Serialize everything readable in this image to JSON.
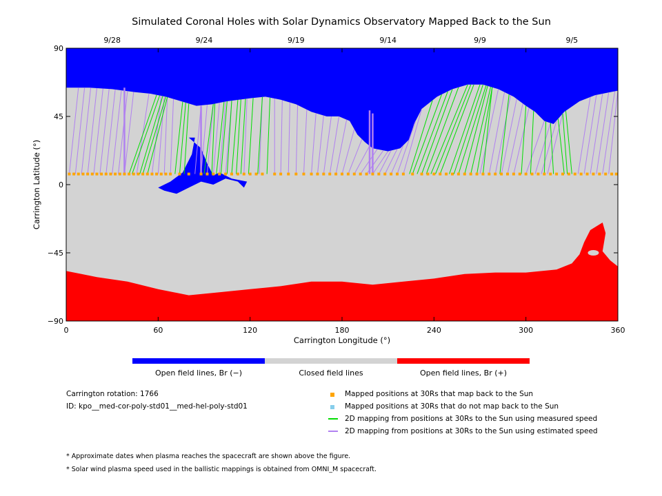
{
  "chart_data": {
    "type": "map",
    "title": "Simulated Coronal Holes with Solar Dynamics Observatory Mapped Back to the Sun",
    "xlabel": "Carrington Longitude (°)",
    "ylabel": "Carrington Latitude (°)",
    "xlim": [
      0,
      360
    ],
    "ylim": [
      -90,
      90
    ],
    "xticks": [
      0,
      60,
      120,
      180,
      240,
      300,
      360
    ],
    "yticks": [
      -90,
      -45,
      0,
      45,
      90
    ],
    "xtick_labels": [
      "0",
      "60",
      "120",
      "180",
      "240",
      "300",
      "360"
    ],
    "ytick_labels": [
      "−90",
      "−45",
      "0",
      "45",
      "90"
    ],
    "top_dates": [
      {
        "label": "9/28",
        "lon": 30
      },
      {
        "label": "9/24",
        "lon": 90
      },
      {
        "label": "9/19",
        "lon": 150
      },
      {
        "label": "9/14",
        "lon": 210
      },
      {
        "label": "9/9",
        "lon": 270
      },
      {
        "label": "9/5",
        "lon": 330
      }
    ],
    "colors": {
      "open_negative": "#0000ff",
      "closed": "#d3d3d3",
      "open_positive": "#ff0000",
      "mapped": "#ffa500",
      "unmapped": "#87ceeb",
      "measured": "#00dd00",
      "estimated": "#b080f0"
    },
    "north_boundary": [
      [
        0,
        64
      ],
      [
        15,
        64
      ],
      [
        30,
        63
      ],
      [
        45,
        61
      ],
      [
        55,
        60
      ],
      [
        65,
        58
      ],
      [
        75,
        55
      ],
      [
        85,
        52
      ],
      [
        95,
        53
      ],
      [
        105,
        55
      ],
      [
        120,
        57
      ],
      [
        130,
        58
      ],
      [
        140,
        56
      ],
      [
        150,
        53
      ],
      [
        160,
        48
      ],
      [
        170,
        45
      ],
      [
        178,
        45
      ],
      [
        185,
        42
      ],
      [
        190,
        33
      ],
      [
        195,
        28
      ],
      [
        200,
        24
      ],
      [
        210,
        22
      ],
      [
        218,
        24
      ],
      [
        224,
        30
      ],
      [
        227,
        40
      ],
      [
        232,
        50
      ],
      [
        242,
        58
      ],
      [
        252,
        63
      ],
      [
        262,
        66
      ],
      [
        272,
        66
      ],
      [
        282,
        63
      ],
      [
        292,
        58
      ],
      [
        300,
        52
      ],
      [
        306,
        48
      ],
      [
        312,
        42
      ],
      [
        318,
        40
      ],
      [
        325,
        48
      ],
      [
        335,
        55
      ],
      [
        345,
        59
      ],
      [
        360,
        62
      ]
    ],
    "south_boundary": [
      [
        0,
        -57
      ],
      [
        10,
        -59
      ],
      [
        20,
        -61
      ],
      [
        40,
        -64
      ],
      [
        60,
        -69
      ],
      [
        80,
        -73
      ],
      [
        100,
        -71
      ],
      [
        120,
        -69
      ],
      [
        140,
        -67
      ],
      [
        160,
        -64
      ],
      [
        180,
        -64
      ],
      [
        200,
        -66
      ],
      [
        220,
        -64
      ],
      [
        240,
        -62
      ],
      [
        260,
        -59
      ],
      [
        280,
        -58
      ],
      [
        300,
        -58
      ],
      [
        320,
        -56
      ],
      [
        330,
        -52
      ],
      [
        335,
        -46
      ],
      [
        338,
        -38
      ],
      [
        342,
        -30
      ],
      [
        350,
        -25
      ],
      [
        352,
        -32
      ],
      [
        350,
        -44
      ],
      [
        355,
        -50
      ],
      [
        360,
        -54
      ]
    ],
    "lower_blue_hole": [
      [
        80,
        31
      ],
      [
        88,
        24
      ],
      [
        92,
        14
      ],
      [
        96,
        6
      ],
      [
        100,
        8
      ],
      [
        108,
        4
      ],
      [
        118,
        2
      ],
      [
        116,
        -2
      ],
      [
        112,
        2
      ],
      [
        104,
        4
      ],
      [
        96,
        0
      ],
      [
        88,
        2
      ],
      [
        80,
        -2
      ],
      [
        72,
        -6
      ],
      [
        64,
        -4
      ],
      [
        60,
        -2
      ],
      [
        68,
        2
      ],
      [
        76,
        8
      ],
      [
        82,
        20
      ],
      [
        84,
        31
      ]
    ],
    "mapped_lat": 7,
    "mapped_lons": [
      2,
      5,
      8,
      11,
      14,
      17,
      20,
      23,
      26,
      29,
      32,
      35,
      38,
      41,
      44,
      47,
      50,
      53,
      56,
      59,
      62,
      65,
      68,
      74,
      80,
      88,
      92,
      96,
      100,
      104,
      108,
      112,
      116,
      120,
      124,
      128,
      136,
      140,
      145,
      150,
      155,
      160,
      164,
      168,
      172,
      176,
      180,
      184,
      188,
      192,
      196,
      200,
      204,
      208,
      212,
      216,
      220,
      226,
      232,
      236,
      240,
      244,
      248,
      252,
      256,
      260,
      264,
      268,
      272,
      276,
      280,
      284,
      288,
      292,
      296,
      300,
      304,
      308,
      312,
      316,
      320,
      324,
      328,
      332,
      336,
      340,
      344,
      348,
      352,
      356,
      359
    ],
    "green_lines": [
      [
        41,
        59,
        7
      ],
      [
        43,
        61,
        7
      ],
      [
        48,
        63,
        7
      ],
      [
        50,
        65,
        7
      ],
      [
        53,
        66,
        7
      ],
      [
        71,
        76,
        7
      ],
      [
        74,
        78,
        7
      ],
      [
        77,
        80,
        7
      ],
      [
        90,
        96,
        7
      ],
      [
        95,
        97,
        7
      ],
      [
        98,
        103,
        7
      ],
      [
        101,
        105,
        7
      ],
      [
        105,
        108,
        7
      ],
      [
        108,
        112,
        7
      ],
      [
        111,
        114,
        7
      ],
      [
        114,
        117,
        7
      ],
      [
        119,
        122,
        7
      ],
      [
        125,
        128,
        7
      ],
      [
        131,
        133,
        7
      ],
      [
        224,
        239,
        7
      ],
      [
        226,
        245,
        7
      ],
      [
        229,
        249,
        7
      ],
      [
        232,
        252,
        7
      ],
      [
        235,
        256,
        7
      ],
      [
        238,
        262,
        7
      ],
      [
        241,
        264,
        7
      ],
      [
        244,
        266,
        7
      ],
      [
        250,
        270,
        7
      ],
      [
        253,
        272,
        7
      ],
      [
        256,
        274,
        7
      ],
      [
        260,
        275,
        7
      ],
      [
        264,
        277,
        7
      ],
      [
        268,
        278,
        7
      ],
      [
        272,
        278,
        7
      ],
      [
        283,
        289,
        7
      ],
      [
        297,
        300,
        7
      ],
      [
        303,
        305,
        7
      ],
      [
        312,
        313,
        7
      ],
      [
        318,
        316,
        7
      ],
      [
        325,
        321,
        7
      ],
      [
        327,
        324,
        7
      ],
      [
        330,
        326,
        7
      ]
    ],
    "purple_lines": [
      [
        2,
        8
      ],
      [
        6,
        12
      ],
      [
        10,
        16
      ],
      [
        14,
        20
      ],
      [
        18,
        24
      ],
      [
        22,
        28
      ],
      [
        26,
        32
      ],
      [
        30,
        36
      ],
      [
        34,
        40
      ],
      [
        38,
        44
      ],
      [
        46,
        54
      ],
      [
        56,
        62
      ],
      [
        60,
        64
      ],
      [
        64,
        66
      ],
      [
        68,
        70
      ],
      [
        84,
        88
      ],
      [
        88,
        92
      ],
      [
        92,
        96
      ],
      [
        96,
        100
      ],
      [
        100,
        104
      ],
      [
        104,
        108
      ],
      [
        116,
        118
      ],
      [
        126,
        128
      ],
      [
        136,
        136
      ],
      [
        140,
        141
      ],
      [
        145,
        146
      ],
      [
        150,
        151
      ],
      [
        155,
        157
      ],
      [
        160,
        163
      ],
      [
        164,
        168
      ],
      [
        168,
        173
      ],
      [
        172,
        178
      ],
      [
        176,
        183
      ],
      [
        180,
        188
      ],
      [
        184,
        193
      ],
      [
        188,
        198
      ],
      [
        192,
        203
      ],
      [
        196,
        207
      ],
      [
        200,
        210
      ],
      [
        204,
        212
      ],
      [
        208,
        216
      ],
      [
        212,
        220
      ],
      [
        216,
        228
      ],
      [
        220,
        232
      ],
      [
        270,
        282
      ],
      [
        276,
        286
      ],
      [
        280,
        290
      ],
      [
        284,
        294
      ],
      [
        288,
        298
      ],
      [
        292,
        302
      ],
      [
        300,
        312
      ],
      [
        306,
        316
      ],
      [
        310,
        320
      ],
      [
        314,
        324
      ],
      [
        334,
        342
      ],
      [
        338,
        346
      ],
      [
        342,
        350
      ],
      [
        346,
        354
      ],
      [
        350,
        358
      ],
      [
        354,
        360
      ]
    ]
  },
  "legend": {
    "colorbar": {
      "left": "Open field lines, Br (−)",
      "middle": "Closed field lines",
      "right": "Open field lines, Br (+)"
    },
    "rotation": "Carrington rotation: 1766",
    "id": "ID: kpo__med-cor-poly-std01__med-hel-poly-std01",
    "items": [
      {
        "label": "Mapped positions at 30Rs that map back to the Sun",
        "color": "#ffa500",
        "kind": "square"
      },
      {
        "label": "Mapped positions at 30Rs that do not map back to the Sun",
        "color": "#87ceeb",
        "kind": "square"
      },
      {
        "label": "2D mapping from positions at 30Rs to the Sun using measured speed",
        "color": "#00dd00",
        "kind": "line"
      },
      {
        "label": "2D mapping from positions at 30Rs to the Sun using estimated speed",
        "color": "#b080f0",
        "kind": "line"
      }
    ]
  },
  "notes": {
    "note1": "* Approximate dates when plasma reaches the spacecraft are shown above the figure.",
    "note2": "* Solar wind plasma speed used in the ballistic mappings is obtained from OMNI_M spacecraft."
  }
}
